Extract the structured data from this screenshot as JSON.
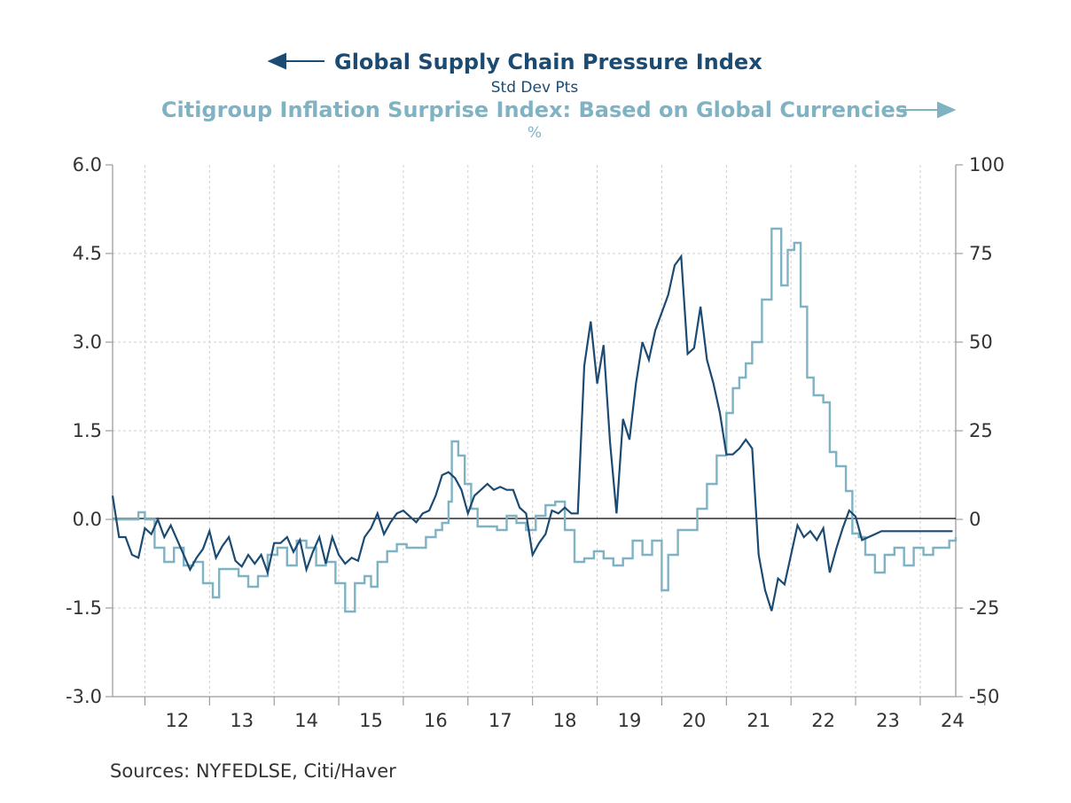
{
  "chart_data": {
    "type": "line",
    "title_left": "Global Supply Chain Pressure Index",
    "title_left_unit": "Std Dev Pts",
    "title_right": "Citigroup Inflation Surprise Index: Based on Global Currencies",
    "title_right_unit": "%",
    "source": "Sources:  NYFEDLSE, Citi/Haver",
    "x_tick_labels": [
      "12",
      "13",
      "14",
      "15",
      "16",
      "17",
      "18",
      "19",
      "20",
      "21",
      "22",
      "23",
      "24"
    ],
    "xlim": [
      2011.5,
      2024.55
    ],
    "left_axis": {
      "ylim": [
        -3.0,
        6.0
      ],
      "ticks": [
        "6.0",
        "4.5",
        "3.0",
        "1.5",
        "0.0",
        "-1.5",
        "-3.0"
      ]
    },
    "right_axis": {
      "ylim": [
        -50,
        100
      ],
      "ticks": [
        "100",
        "75",
        "50",
        "25",
        "0",
        "-25",
        "-50"
      ]
    },
    "colors": {
      "gscpi": "#1b4a72",
      "citi": "#7fb3c4",
      "zero_line": "#000000"
    },
    "series": [
      {
        "name": "Global Supply Chain Pressure Index",
        "axis": "left",
        "x": [
          2011.5,
          2011.6,
          2011.7,
          2011.8,
          2011.9,
          2012.0,
          2012.1,
          2012.2,
          2012.3,
          2012.4,
          2012.5,
          2012.6,
          2012.7,
          2012.8,
          2012.9,
          2013.0,
          2013.1,
          2013.2,
          2013.3,
          2013.4,
          2013.5,
          2013.6,
          2013.7,
          2013.8,
          2013.9,
          2014.0,
          2014.1,
          2014.2,
          2014.3,
          2014.4,
          2014.5,
          2014.6,
          2014.7,
          2014.8,
          2014.9,
          2015.0,
          2015.1,
          2015.2,
          2015.3,
          2015.4,
          2015.5,
          2015.6,
          2015.7,
          2015.8,
          2015.9,
          2016.0,
          2016.1,
          2016.2,
          2016.3,
          2016.4,
          2016.5,
          2016.6,
          2016.7,
          2016.8,
          2016.9,
          2017.0,
          2017.1,
          2017.2,
          2017.3,
          2017.4,
          2017.5,
          2017.6,
          2017.7,
          2017.8,
          2017.9,
          2018.0,
          2018.1,
          2018.2,
          2018.3,
          2018.4,
          2018.5,
          2018.6,
          2018.7,
          2018.8,
          2018.9,
          2019.0,
          2019.1,
          2019.2,
          2019.3,
          2019.4,
          2019.5,
          2019.6,
          2019.7,
          2019.8,
          2019.9,
          2020.0,
          2020.1,
          2020.2,
          2020.3,
          2020.4,
          2020.5,
          2020.6,
          2020.7,
          2020.8,
          2020.9,
          2021.0,
          2021.1,
          2021.2,
          2021.3,
          2021.4,
          2021.5,
          2021.6,
          2021.7,
          2021.8,
          2021.9,
          2022.0,
          2022.1,
          2022.2,
          2022.3,
          2022.4,
          2022.5,
          2022.6,
          2022.7,
          2022.8,
          2022.9,
          2023.0,
          2023.1,
          2023.2,
          2023.3,
          2023.4,
          2023.5,
          2023.6,
          2023.7,
          2023.8,
          2023.9,
          2024.0,
          2024.1,
          2024.2,
          2024.3,
          2024.4,
          2024.5
        ],
        "values": [
          0.4,
          -0.3,
          -0.3,
          -0.6,
          -0.65,
          -0.15,
          -0.25,
          0.0,
          -0.3,
          -0.1,
          -0.35,
          -0.6,
          -0.85,
          -0.65,
          -0.5,
          -0.2,
          -0.65,
          -0.45,
          -0.3,
          -0.7,
          -0.8,
          -0.6,
          -0.75,
          -0.6,
          -0.9,
          -0.4,
          -0.4,
          -0.3,
          -0.55,
          -0.35,
          -0.85,
          -0.55,
          -0.3,
          -0.75,
          -0.3,
          -0.6,
          -0.75,
          -0.65,
          -0.7,
          -0.3,
          -0.15,
          0.1,
          -0.25,
          -0.05,
          0.1,
          0.15,
          0.05,
          -0.05,
          0.1,
          0.15,
          0.4,
          0.75,
          0.8,
          0.7,
          0.5,
          0.1,
          0.4,
          0.5,
          0.6,
          0.5,
          0.55,
          0.5,
          0.5,
          0.2,
          0.1,
          -0.6,
          -0.4,
          -0.25,
          0.15,
          0.1,
          0.2,
          0.1,
          0.1,
          2.6,
          3.35,
          2.3,
          2.95,
          1.3,
          0.1,
          1.7,
          1.35,
          2.3,
          3.0,
          2.7,
          3.2,
          3.5,
          3.8,
          4.3,
          4.45,
          2.8,
          2.9,
          3.6,
          2.7,
          2.3,
          1.8,
          1.1,
          1.1,
          1.2,
          1.35,
          1.2,
          -0.6,
          -1.2,
          -1.55,
          -1.0,
          -1.1,
          -0.6,
          -0.1,
          -0.3,
          -0.2,
          -0.35,
          -0.15,
          -0.9,
          -0.5,
          -0.15,
          0.15,
          0.05,
          -0.35,
          -0.3,
          -0.25,
          -0.2,
          -0.2,
          -0.2,
          -0.2,
          -0.2,
          -0.2,
          -0.2,
          -0.2,
          -0.2,
          -0.2,
          -0.2,
          -0.2
        ]
      },
      {
        "name": "Citigroup Inflation Surprise Index: Based on Global Currencies",
        "axis": "right",
        "x": [
          2011.5,
          2011.7,
          2011.9,
          2012.0,
          2012.15,
          2012.3,
          2012.45,
          2012.6,
          2012.75,
          2012.9,
          2013.05,
          2013.15,
          2013.3,
          2013.45,
          2013.6,
          2013.75,
          2013.9,
          2014.05,
          2014.2,
          2014.35,
          2014.5,
          2014.65,
          2014.8,
          2014.95,
          2015.1,
          2015.25,
          2015.4,
          2015.5,
          2015.6,
          2015.75,
          2015.9,
          2016.05,
          2016.2,
          2016.35,
          2016.5,
          2016.6,
          2016.7,
          2016.75,
          2016.85,
          2016.95,
          2017.05,
          2017.15,
          2017.3,
          2017.45,
          2017.6,
          2017.75,
          2017.9,
          2018.05,
          2018.2,
          2018.35,
          2018.5,
          2018.65,
          2018.8,
          2018.95,
          2019.1,
          2019.25,
          2019.4,
          2019.55,
          2019.7,
          2019.85,
          2020.0,
          2020.1,
          2020.25,
          2020.4,
          2020.55,
          2020.7,
          2020.85,
          2021.0,
          2021.1,
          2021.2,
          2021.3,
          2021.4,
          2021.55,
          2021.7,
          2021.85,
          2021.95,
          2022.05,
          2022.15,
          2022.25,
          2022.35,
          2022.5,
          2022.6,
          2022.7,
          2022.85,
          2022.95,
          2023.05,
          2023.15,
          2023.3,
          2023.45,
          2023.6,
          2023.75,
          2023.9,
          2024.05,
          2024.2,
          2024.35,
          2024.45,
          2024.55
        ],
        "values": [
          0,
          0,
          2,
          0,
          -8,
          -12,
          -8,
          -13,
          -12,
          -18,
          -22,
          -14,
          -14,
          -16,
          -19,
          -16,
          -10,
          -8,
          -13,
          -6,
          -8,
          -13,
          -12,
          -18,
          -26,
          -18,
          -16,
          -19,
          -12,
          -9,
          -7,
          -8,
          -8,
          -5,
          -3,
          -1,
          5,
          22,
          18,
          10,
          3,
          -2,
          -2,
          -3,
          1,
          -1,
          -3,
          1,
          4,
          5,
          -3,
          -12,
          -11,
          -9,
          -11,
          -13,
          -11,
          -6,
          -10,
          -6,
          -20,
          -10,
          -3,
          -3,
          3,
          10,
          18,
          30,
          37,
          40,
          44,
          50,
          62,
          82,
          66,
          76,
          78,
          60,
          40,
          35,
          33,
          19,
          15,
          8,
          -4,
          -5,
          -10,
          -15,
          -10,
          -8,
          -13,
          -8,
          -10,
          -8,
          -8,
          -6,
          -5
        ]
      }
    ]
  }
}
